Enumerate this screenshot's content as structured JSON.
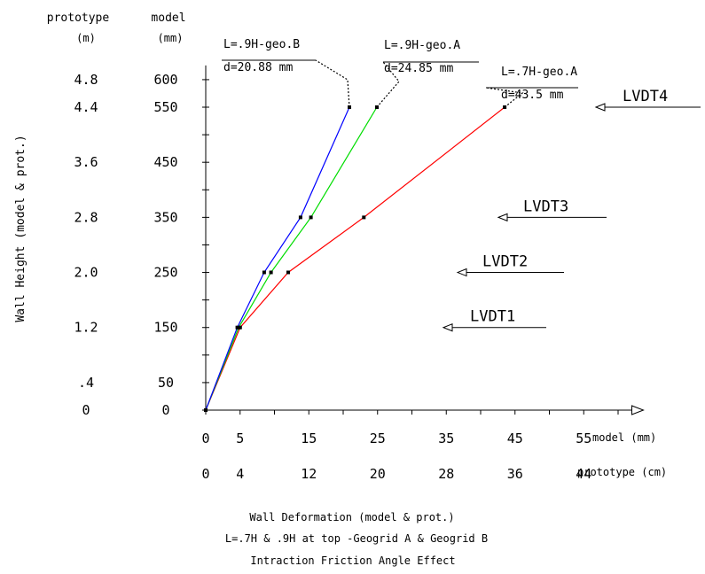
{
  "chart_data": {
    "type": "line",
    "title_lines": [
      "Wall Deformation (model & prot.)",
      "L=.7H & .9H at top -Geogrid A & Geogrid B",
      "Intraction Friction Angle Effect"
    ],
    "ylabel": "Wall Height (model & prot.)",
    "y_headers": {
      "prototype": "prototype",
      "prototype_unit": "(m)",
      "model": "model",
      "model_unit": "(mm)"
    },
    "y_ticks_model": [
      "0",
      "50",
      "150",
      "250",
      "350",
      "450",
      "550",
      "600"
    ],
    "y_ticks_prototype": [
      "0",
      ".4",
      "1.2",
      "2.0",
      "2.8",
      "3.6",
      "4.4",
      "4.8"
    ],
    "y_tick_values": [
      0,
      50,
      150,
      250,
      350,
      450,
      550,
      600
    ],
    "x_ticks_model": [
      "0",
      "5",
      "15",
      "25",
      "35",
      "45",
      "55"
    ],
    "x_ticks_prototype": [
      "0",
      "4",
      "12",
      "20",
      "28",
      "36",
      "44"
    ],
    "x_tick_values": [
      0,
      5,
      15,
      25,
      35,
      45,
      55
    ],
    "x_unit_model": "model (mm)",
    "x_unit_prototype": "prototype (cm)",
    "xlim": [
      0,
      62
    ],
    "ylim": [
      0,
      600
    ],
    "grid": false,
    "series": [
      {
        "name": "L=.9H-geo.B",
        "annotation": "d=20.88 mm",
        "color": "#0000ff",
        "x": [
          0,
          4.6,
          8.5,
          13.8,
          20.9
        ],
        "y": [
          0,
          150,
          250,
          350,
          550
        ]
      },
      {
        "name": "L=.9H-geo.A",
        "annotation": "d=24.85 mm",
        "color": "#00dd00",
        "x": [
          0,
          4.8,
          9.5,
          15.3,
          24.9
        ],
        "y": [
          0,
          150,
          250,
          350,
          550
        ]
      },
      {
        "name": "L=.7H-geo.A",
        "annotation": "d=43.5 mm",
        "color": "#ff0000",
        "x": [
          0,
          5.0,
          12.0,
          23.0,
          43.5
        ],
        "y": [
          0,
          150,
          250,
          350,
          550
        ]
      }
    ],
    "lvdts": [
      {
        "label": "LVDT4",
        "y": 550
      },
      {
        "label": "LVDT3",
        "y": 350
      },
      {
        "label": "LVDT2",
        "y": 250
      },
      {
        "label": "LVDT1",
        "y": 150
      }
    ]
  }
}
